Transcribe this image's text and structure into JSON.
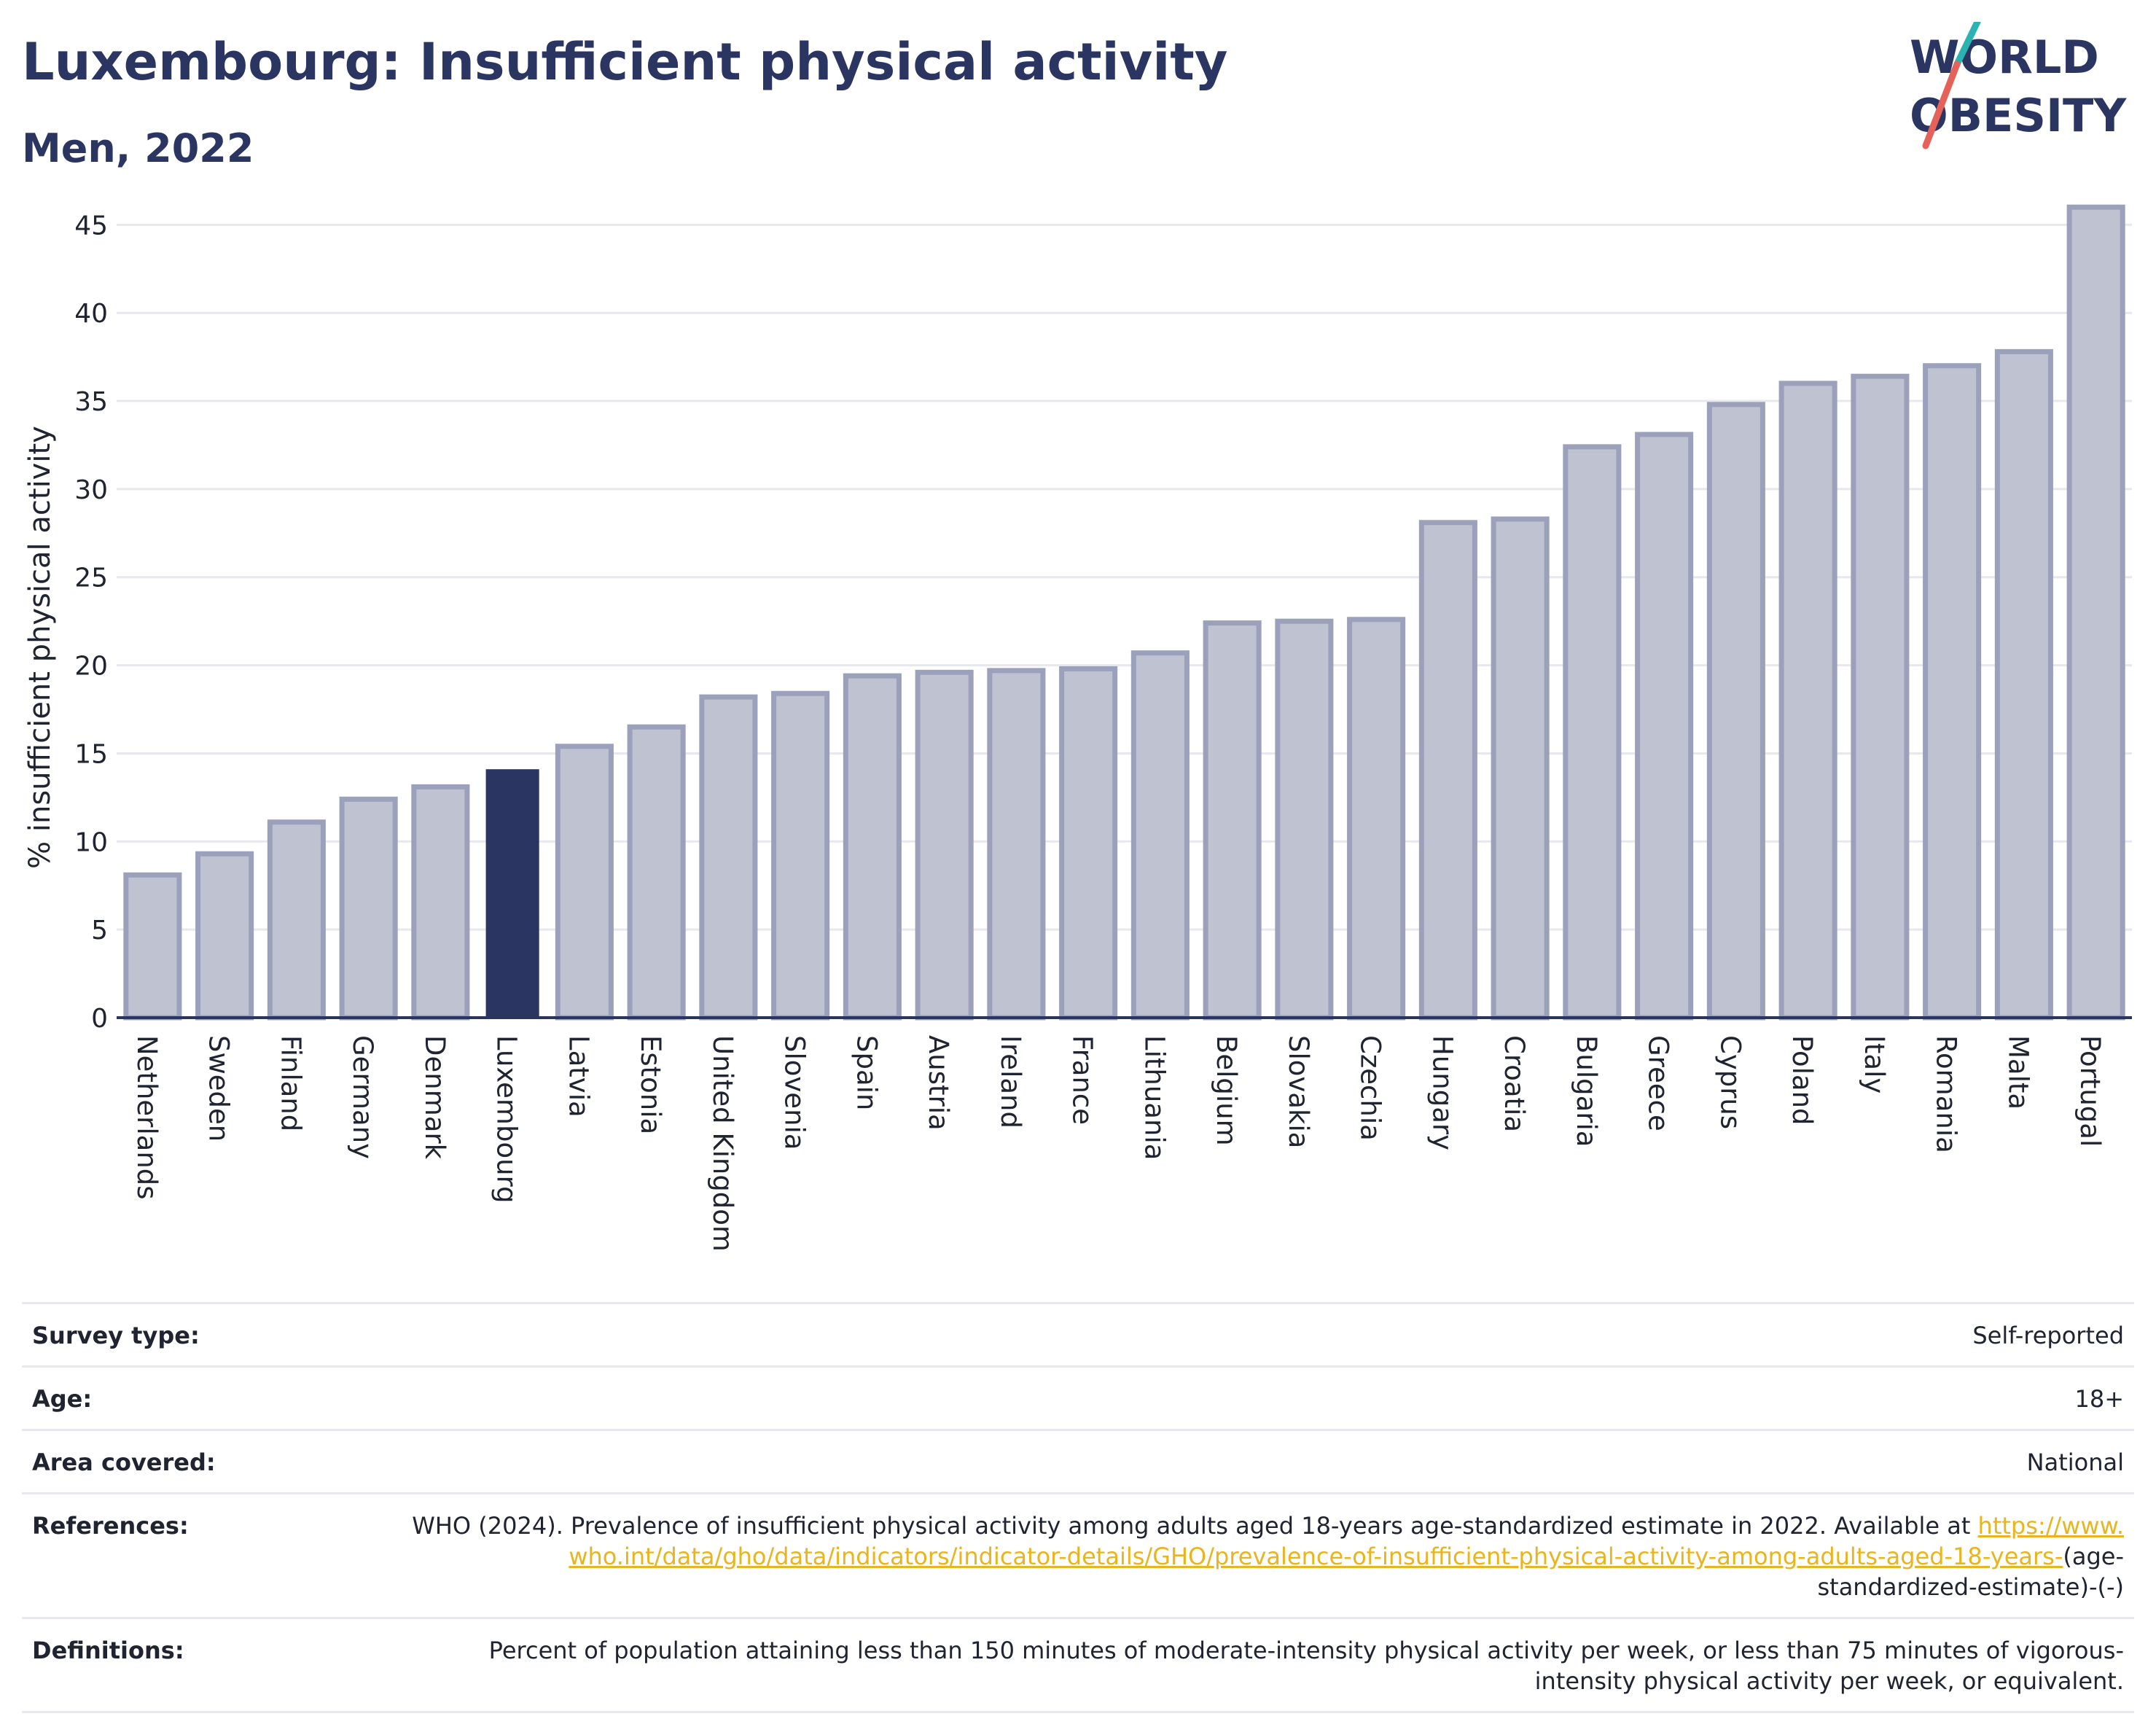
{
  "header": {
    "title": "Luxembourg: Insufficient physical activity",
    "subtitle": "Men, 2022",
    "logo_line1": "WORLD",
    "logo_line2": "OBESITY"
  },
  "chart_data": {
    "type": "bar",
    "title": "Luxembourg: Insufficient physical activity",
    "subtitle": "Men, 2022",
    "ylabel": "% insufficient physical activity",
    "xlabel": "",
    "ylim": [
      0,
      47
    ],
    "yticks": [
      0,
      5,
      10,
      15,
      20,
      25,
      30,
      35,
      40,
      45
    ],
    "grid": true,
    "highlight": "Luxembourg",
    "colors": {
      "bar": "#bfc2d1",
      "bar_border": "#9ca1bb",
      "highlight": "#2b3561",
      "axis": "#2b3561",
      "grid": "#e6e8ee"
    },
    "categories": [
      "Netherlands",
      "Sweden",
      "Finland",
      "Germany",
      "Denmark",
      "Luxembourg",
      "Latvia",
      "Estonia",
      "United Kingdom",
      "Slovenia",
      "Spain",
      "Austria",
      "Ireland",
      "France",
      "Lithuania",
      "Belgium",
      "Slovakia",
      "Czechia",
      "Hungary",
      "Croatia",
      "Bulgaria",
      "Greece",
      "Cyprus",
      "Poland",
      "Italy",
      "Romania",
      "Malta",
      "Portugal"
    ],
    "values": [
      8.1,
      9.3,
      11.1,
      12.4,
      13.1,
      14.1,
      15.4,
      16.5,
      18.2,
      18.4,
      19.4,
      19.6,
      19.7,
      19.8,
      20.7,
      22.4,
      22.5,
      22.6,
      28.1,
      28.3,
      32.4,
      33.1,
      34.8,
      36.0,
      36.4,
      37.0,
      37.8,
      46.0
    ]
  },
  "info_table": [
    {
      "label": "Survey type:",
      "value": "Self-reported"
    },
    {
      "label": "Age:",
      "value": "18+"
    },
    {
      "label": "Area covered:",
      "value": "National"
    },
    {
      "label": "References:",
      "value": "WHO (2024). Prevalence of insufficient physical activity among adults aged 18-years age-standardized estimate in 2022. Available at",
      "link": "https://www.who.int/data/gho/data/indicators/indicator-details/GHO/prevalence-of-insufficient-physical-activity-among-adults-aged-18-years-",
      "suffix": "(age-standardized-estimate)-(-)"
    },
    {
      "label": "Definitions:",
      "value": "Percent of population attaining less than 150 minutes of moderate-intensity physical activity per week, or less than 75 minutes of vigorous-intensity physical activity per week, or equivalent."
    }
  ]
}
